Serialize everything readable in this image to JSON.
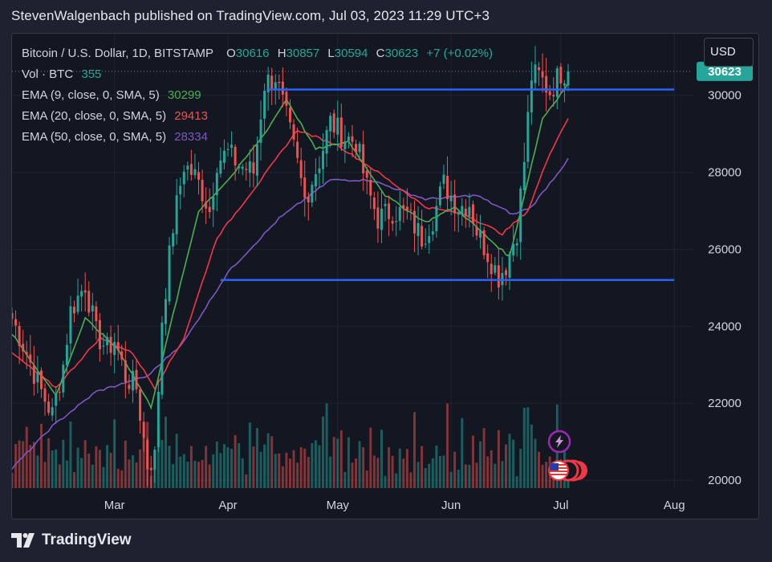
{
  "header": {
    "publisher_line": "StevenWalgenbach published on TradingView.com, Jul 03, 2023 11:29 UTC+3"
  },
  "legend": {
    "symbol": "Bitcoin / U.S. Dollar, 1D, BITSTAMP",
    "o_label": "O",
    "o_value": "30616",
    "h_label": "H",
    "h_value": "30857",
    "l_label": "L",
    "l_value": "30594",
    "c_label": "C",
    "c_value": "30623",
    "change": "+7 (+0.02%)",
    "vol_label": "Vol · BTC",
    "vol_value": "355",
    "ema9_label": "EMA (9, close, 0, SMA, 5)",
    "ema9_value": "30299",
    "ema20_label": "EMA (20, close, 0, SMA, 5)",
    "ema20_value": "29413",
    "ema50_label": "EMA (50, close, 0, SMA, 5)",
    "ema50_value": "28334"
  },
  "currency_button": "USD",
  "price_label": "30623",
  "footer": {
    "brand": "TradingView"
  },
  "colors": {
    "up": "#26a69a",
    "down": "#ef5350",
    "ema9": "#4caf50",
    "ema20": "#f23645",
    "ema50": "#7e57c2",
    "level_line": "#2962ff",
    "price_badge": "#26a69a"
  },
  "icons": [
    "lightning-icon",
    "us-flag-icon"
  ],
  "chart_data": {
    "type": "candlestick",
    "y_ticks": [
      30000,
      28000,
      26000,
      24000,
      22000,
      20000
    ],
    "x_ticks": [
      "Mar",
      "Apr",
      "May",
      "Jun",
      "Jul",
      "Aug"
    ],
    "ylim": [
      19000,
      31600
    ],
    "x_range": [
      "2023-02-01",
      "2023-08-06"
    ],
    "horizontal_levels": [
      {
        "price": 30150,
        "from": "2023-04-12",
        "to": "2023-08-01"
      },
      {
        "price": 25200,
        "from": "2023-03-30",
        "to": "2023-08-01"
      }
    ],
    "anchors": [
      [
        "2023-02-01",
        24200
      ],
      [
        "2023-02-05",
        23300
      ],
      [
        "2023-02-09",
        22300
      ],
      [
        "2023-02-12",
        21700
      ],
      [
        "2023-02-15",
        23000
      ],
      [
        "2023-02-17",
        24400
      ],
      [
        "2023-02-21",
        25100
      ],
      [
        "2023-02-24",
        23800
      ],
      [
        "2023-02-27",
        23400
      ],
      [
        "2023-03-01",
        23650
      ],
      [
        "2023-03-04",
        22700
      ],
      [
        "2023-03-07",
        22400
      ],
      [
        "2023-03-10",
        20400
      ],
      [
        "2023-03-12",
        20600
      ],
      [
        "2023-03-14",
        24200
      ],
      [
        "2023-03-17",
        26600
      ],
      [
        "2023-03-20",
        28200
      ],
      [
        "2023-03-23",
        27900
      ],
      [
        "2023-03-25",
        27500
      ],
      [
        "2023-03-27",
        27000
      ],
      [
        "2023-03-29",
        28300
      ],
      [
        "2023-04-01",
        28500
      ],
      [
        "2023-04-04",
        28200
      ],
      [
        "2023-04-08",
        28000
      ],
      [
        "2023-04-11",
        30300
      ],
      [
        "2023-04-14",
        30500
      ],
      [
        "2023-04-17",
        29400
      ],
      [
        "2023-04-20",
        28200
      ],
      [
        "2023-04-22",
        27300
      ],
      [
        "2023-04-26",
        28300
      ],
      [
        "2023-04-29",
        29300
      ],
      [
        "2023-05-03",
        28900
      ],
      [
        "2023-05-06",
        28800
      ],
      [
        "2023-05-09",
        27600
      ],
      [
        "2023-05-12",
        26800
      ],
      [
        "2023-05-16",
        27000
      ],
      [
        "2023-05-20",
        26900
      ],
      [
        "2023-05-24",
        26300
      ],
      [
        "2023-05-27",
        26800
      ],
      [
        "2023-05-30",
        27700
      ],
      [
        "2023-06-03",
        27100
      ],
      [
        "2023-06-06",
        27200
      ],
      [
        "2023-06-08",
        26500
      ],
      [
        "2023-06-11",
        25900
      ],
      [
        "2023-06-14",
        25300
      ],
      [
        "2023-06-16",
        25600
      ],
      [
        "2023-06-19",
        26500
      ],
      [
        "2023-06-21",
        28300
      ],
      [
        "2023-06-23",
        30500
      ],
      [
        "2023-06-25",
        30500
      ],
      [
        "2023-06-28",
        30100
      ],
      [
        "2023-07-01",
        30600
      ],
      [
        "2023-07-03",
        30623
      ]
    ],
    "ema9_anchors": [
      [
        "2023-02-01",
        23800
      ],
      [
        "2023-02-13",
        22200
      ],
      [
        "2023-02-21",
        24200
      ],
      [
        "2023-03-02",
        23400
      ],
      [
        "2023-03-11",
        21900
      ],
      [
        "2023-03-17",
        24300
      ],
      [
        "2023-03-24",
        27000
      ],
      [
        "2023-04-02",
        27900
      ],
      [
        "2023-04-11",
        29000
      ],
      [
        "2023-04-17",
        29900
      ],
      [
        "2023-04-25",
        28600
      ],
      [
        "2023-05-04",
        28800
      ],
      [
        "2023-05-14",
        27400
      ],
      [
        "2023-05-25",
        26700
      ],
      [
        "2023-06-02",
        27100
      ],
      [
        "2023-06-11",
        26300
      ],
      [
        "2023-06-17",
        25800
      ],
      [
        "2023-06-22",
        27800
      ],
      [
        "2023-06-26",
        29400
      ],
      [
        "2023-07-03",
        30299
      ]
    ],
    "ema20_anchors": [
      [
        "2023-02-01",
        23300
      ],
      [
        "2023-02-13",
        22400
      ],
      [
        "2023-02-25",
        23700
      ],
      [
        "2023-03-06",
        23300
      ],
      [
        "2023-03-12",
        22400
      ],
      [
        "2023-03-20",
        23700
      ],
      [
        "2023-03-29",
        26300
      ],
      [
        "2023-04-10",
        27800
      ],
      [
        "2023-04-20",
        29100
      ],
      [
        "2023-05-01",
        28700
      ],
      [
        "2023-05-12",
        28000
      ],
      [
        "2023-05-25",
        27100
      ],
      [
        "2023-06-05",
        26900
      ],
      [
        "2023-06-15",
        26400
      ],
      [
        "2023-06-22",
        27000
      ],
      [
        "2023-06-28",
        28500
      ],
      [
        "2023-07-03",
        29413
      ]
    ],
    "ema50_anchors": [
      [
        "2023-02-01",
        20300
      ],
      [
        "2023-02-12",
        21400
      ],
      [
        "2023-02-24",
        22300
      ],
      [
        "2023-03-10",
        22700
      ],
      [
        "2023-03-20",
        23600
      ],
      [
        "2023-04-01",
        25400
      ],
      [
        "2023-04-15",
        26800
      ],
      [
        "2023-04-29",
        27800
      ],
      [
        "2023-05-10",
        27800
      ],
      [
        "2023-05-25",
        27300
      ],
      [
        "2023-06-08",
        27400
      ],
      [
        "2023-06-18",
        26900
      ],
      [
        "2023-06-23",
        27100
      ],
      [
        "2023-07-03",
        28334
      ]
    ]
  }
}
